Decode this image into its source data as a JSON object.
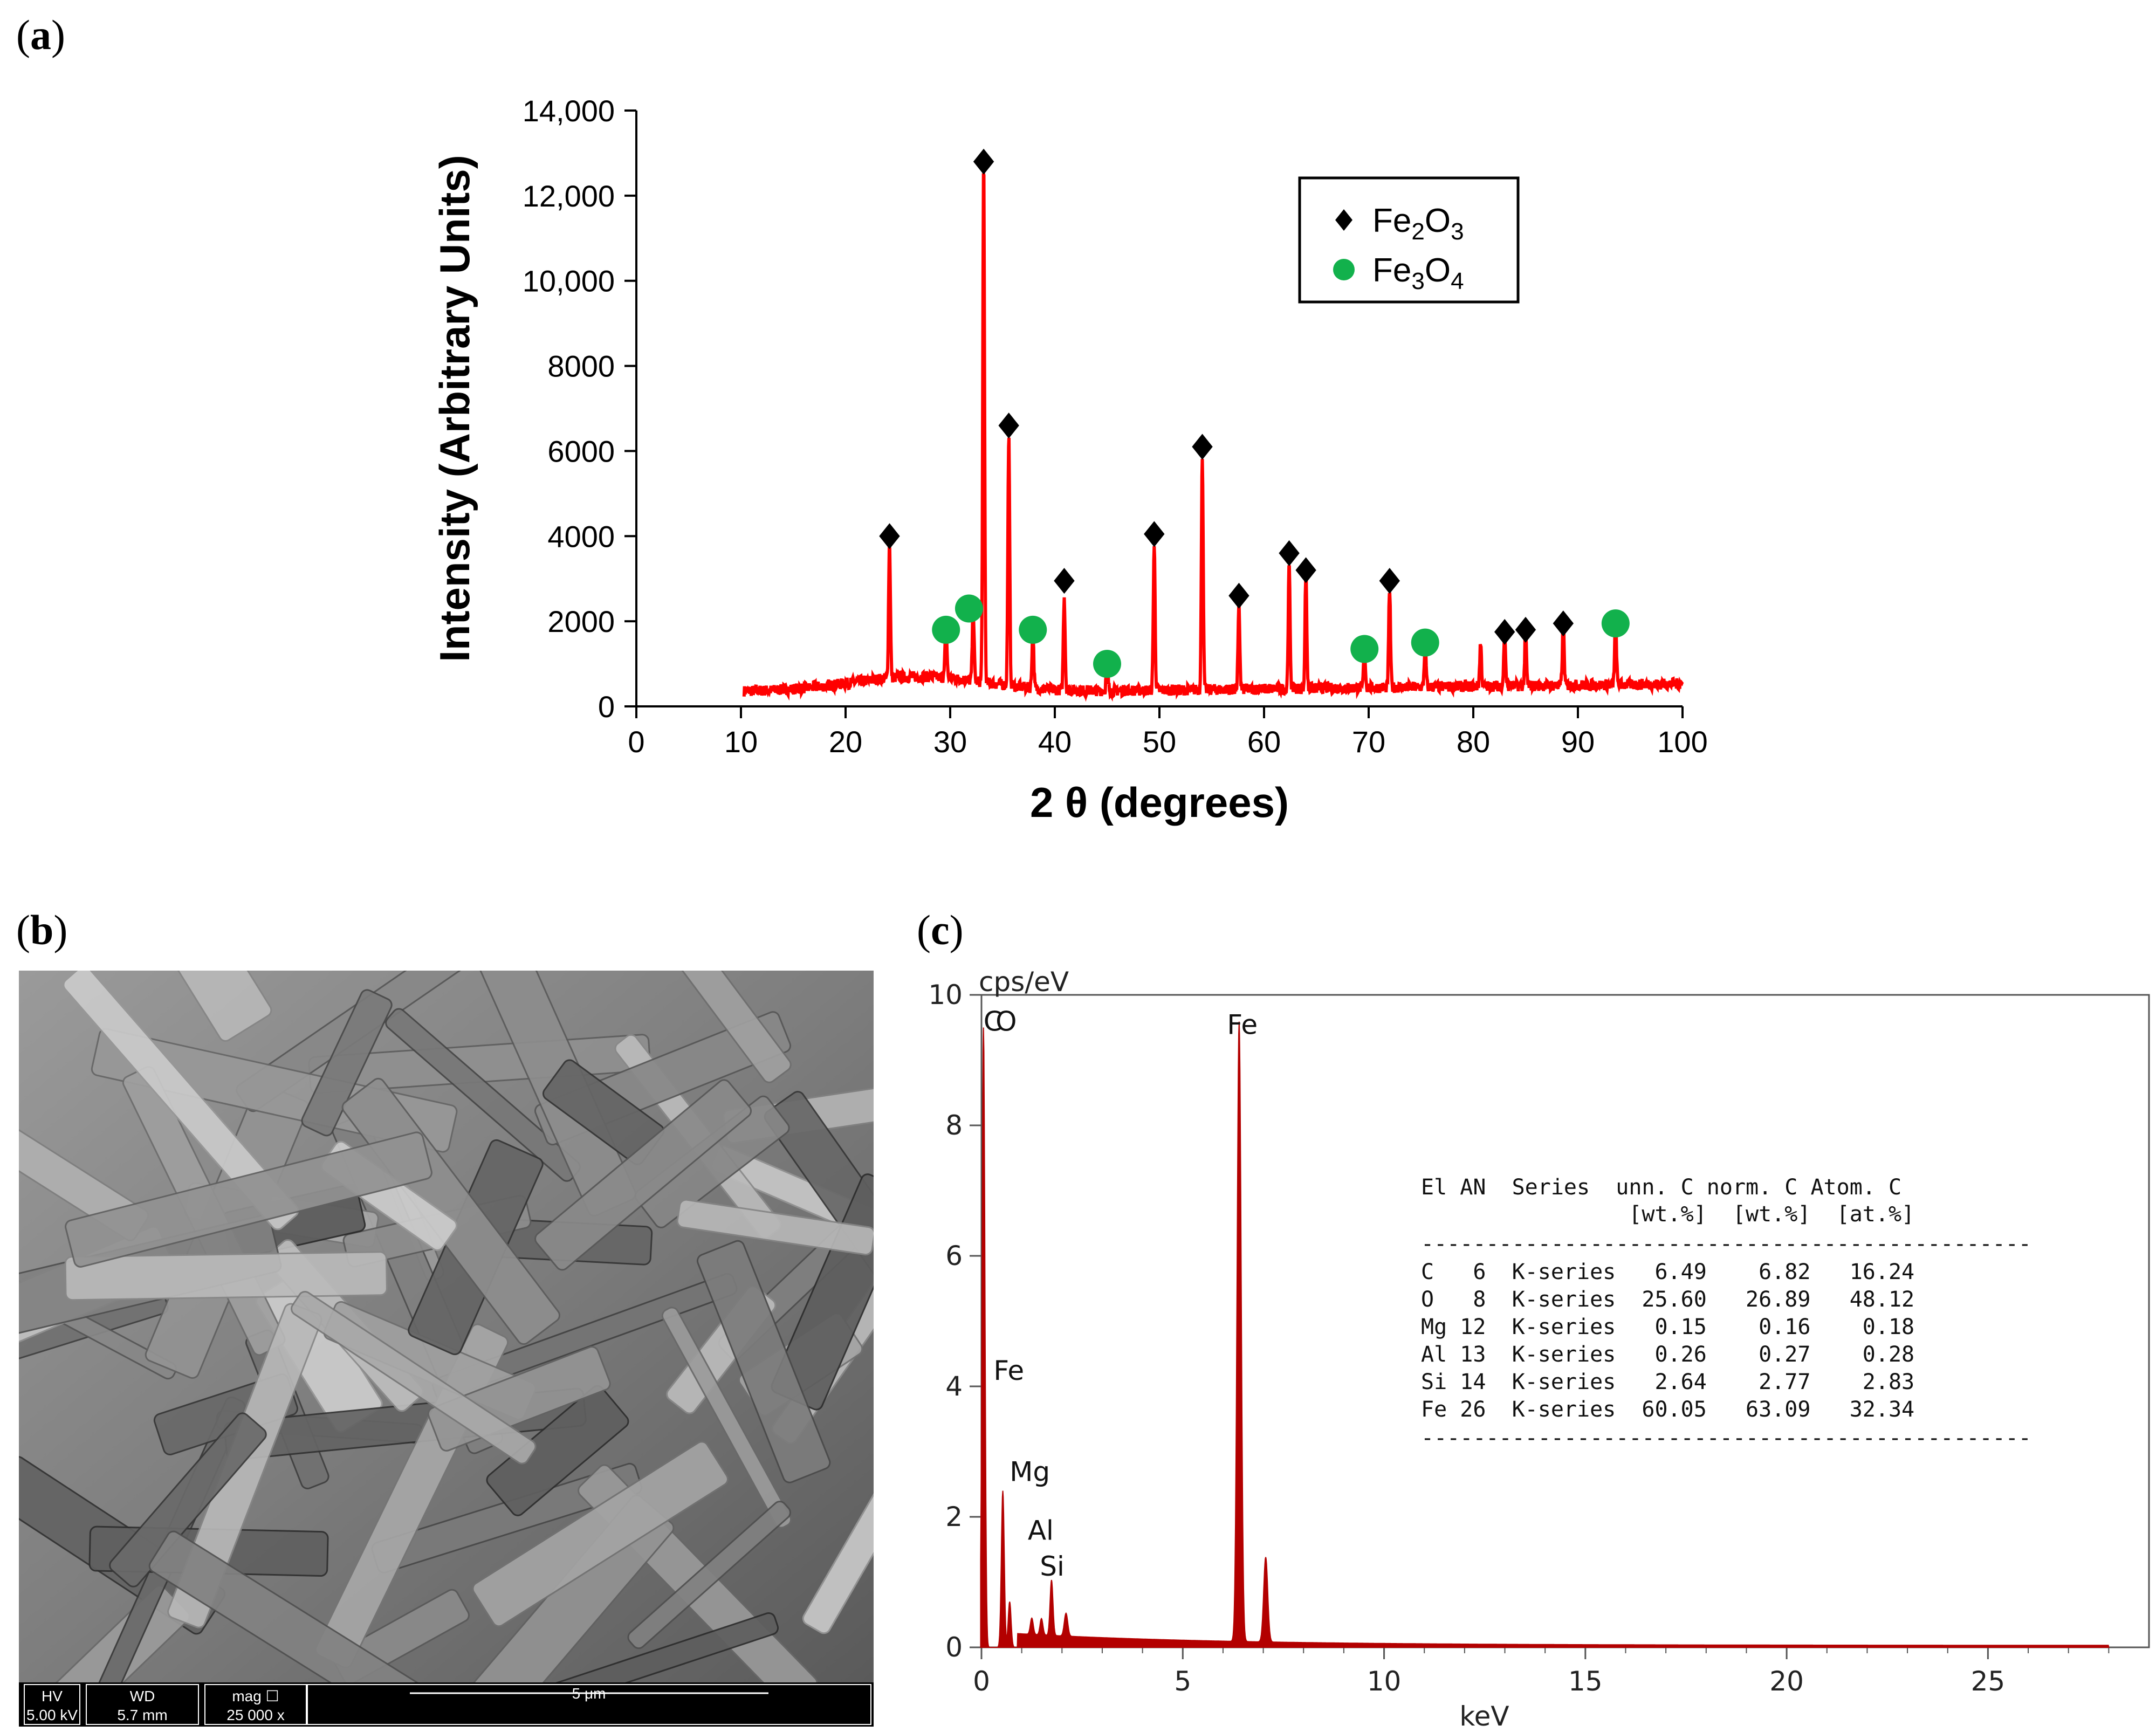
{
  "panels": {
    "a": {
      "label": "a"
    },
    "b": {
      "label": "b"
    },
    "c": {
      "label": "c"
    }
  },
  "chart_data": [
    {
      "panel": "a",
      "type": "line",
      "title": "",
      "xlabel": "2 θ (degrees)",
      "ylabel": "Intensity (Arbitrary Units)",
      "xlim": [
        0,
        100
      ],
      "ylim": [
        0,
        14000
      ],
      "x_ticks": [
        "0",
        "10",
        "20",
        "30",
        "40",
        "50",
        "60",
        "70",
        "80",
        "90",
        "100"
      ],
      "y_ticks": [
        "0",
        "2000",
        "4000",
        "6000",
        "8000",
        "10,000",
        "12,000",
        "14,000"
      ],
      "line_color": "#ff0000",
      "legend": [
        {
          "name": "Fe2O3",
          "sub": [
            "Fe",
            "2",
            "O",
            "3"
          ],
          "marker": "diamond",
          "color": "#000000"
        },
        {
          "name": "Fe3O4",
          "sub": [
            "Fe",
            "3",
            "O",
            "4"
          ],
          "marker": "circle",
          "color": "#12b14c"
        }
      ],
      "peaks": [
        {
          "x": 24.2,
          "y": 3200
        },
        {
          "x": 29.6,
          "y": 1300
        },
        {
          "x": 32.2,
          "y": 1700
        },
        {
          "x": 33.2,
          "y": 12200
        },
        {
          "x": 35.6,
          "y": 5900
        },
        {
          "x": 37.9,
          "y": 1350
        },
        {
          "x": 40.9,
          "y": 2200
        },
        {
          "x": 45.0,
          "y": 700
        },
        {
          "x": 49.5,
          "y": 3400
        },
        {
          "x": 54.1,
          "y": 5500
        },
        {
          "x": 57.6,
          "y": 1900
        },
        {
          "x": 62.4,
          "y": 2900
        },
        {
          "x": 64.0,
          "y": 2700
        },
        {
          "x": 69.6,
          "y": 900
        },
        {
          "x": 72.0,
          "y": 2300
        },
        {
          "x": 75.4,
          "y": 1000
        },
        {
          "x": 80.7,
          "y": 1000
        },
        {
          "x": 83.0,
          "y": 1250
        },
        {
          "x": 85.0,
          "y": 1200
        },
        {
          "x": 88.6,
          "y": 1450
        },
        {
          "x": 93.6,
          "y": 1550
        }
      ],
      "markers_fe2o3": [
        {
          "x": 24.2,
          "y": 4000
        },
        {
          "x": 33.2,
          "y": 12800
        },
        {
          "x": 35.6,
          "y": 6600
        },
        {
          "x": 40.9,
          "y": 2950
        },
        {
          "x": 49.5,
          "y": 4050
        },
        {
          "x": 54.1,
          "y": 6100
        },
        {
          "x": 57.6,
          "y": 2600
        },
        {
          "x": 62.4,
          "y": 3600
        },
        {
          "x": 64.0,
          "y": 3200
        },
        {
          "x": 72.0,
          "y": 2950
        },
        {
          "x": 83.0,
          "y": 1750
        },
        {
          "x": 85.0,
          "y": 1800
        },
        {
          "x": 88.6,
          "y": 1950
        }
      ],
      "markers_fe3o4": [
        {
          "x": 29.6,
          "y": 1800
        },
        {
          "x": 31.8,
          "y": 2300
        },
        {
          "x": 37.9,
          "y": 1800
        },
        {
          "x": 45.0,
          "y": 1000
        },
        {
          "x": 69.6,
          "y": 1350
        },
        {
          "x": 75.4,
          "y": 1500
        },
        {
          "x": 93.6,
          "y": 1950
        }
      ]
    },
    {
      "panel": "c",
      "type": "area",
      "title": "",
      "xlabel": "keV",
      "ylabel": "cps/eV",
      "xlim": [
        0,
        29
      ],
      "ylim": [
        0,
        10
      ],
      "x_ticks": [
        "0",
        "5",
        "10",
        "15",
        "20",
        "25"
      ],
      "y_ticks": [
        "0",
        "2",
        "4",
        "6",
        "8",
        "10"
      ],
      "line_color": "#b30000",
      "peaks": [
        {
          "x": 0.05,
          "y": 9.5,
          "w": 0.05
        },
        {
          "x": 0.53,
          "y": 2.4,
          "w": 0.05
        },
        {
          "x": 0.7,
          "y": 0.7,
          "w": 0.05
        },
        {
          "x": 1.25,
          "y": 0.25,
          "w": 0.05
        },
        {
          "x": 1.49,
          "y": 0.25,
          "w": 0.05
        },
        {
          "x": 1.74,
          "y": 0.85,
          "w": 0.05
        },
        {
          "x": 2.1,
          "y": 0.35,
          "w": 0.06
        },
        {
          "x": 6.4,
          "y": 9.5,
          "w": 0.07
        },
        {
          "x": 7.06,
          "y": 1.3,
          "w": 0.07
        }
      ],
      "peak_labels": [
        {
          "text": "C",
          "x": 0.05,
          "y": 9.45
        },
        {
          "text": "O",
          "x": 0.35,
          "y": 9.45
        },
        {
          "text": "Fe",
          "x": 6.1,
          "y": 9.4
        },
        {
          "text": "Fe",
          "x": 0.3,
          "y": 4.1
        },
        {
          "text": "Mg",
          "x": 0.7,
          "y": 2.55
        },
        {
          "text": "Al",
          "x": 1.15,
          "y": 1.65
        },
        {
          "text": "Si",
          "x": 1.45,
          "y": 1.1
        }
      ],
      "table": {
        "header1": "El AN  Series  unn. C norm. C Atom. C",
        "header2": "                [wt.%]  [wt.%]  [at.%]",
        "rule": "-----------------------------------------------",
        "rows": [
          "C   6  K-series   6.49    6.82   16.24",
          "O   8  K-series  25.60   26.89   48.12",
          "Mg 12  K-series   0.15    0.16    0.18",
          "Al 13  K-series   0.26    0.27    0.28",
          "Si 14  K-series   2.64    2.77    2.83",
          "Fe 26  K-series  60.05   63.09   32.34"
        ]
      }
    }
  ],
  "sem": {
    "fields": [
      {
        "head": "HV",
        "value": "5.00 kV"
      },
      {
        "head": "WD",
        "value": "5.7 mm"
      },
      {
        "head": "mag ☐",
        "value": "25 000 x"
      }
    ],
    "scale_label": "5 μm"
  }
}
